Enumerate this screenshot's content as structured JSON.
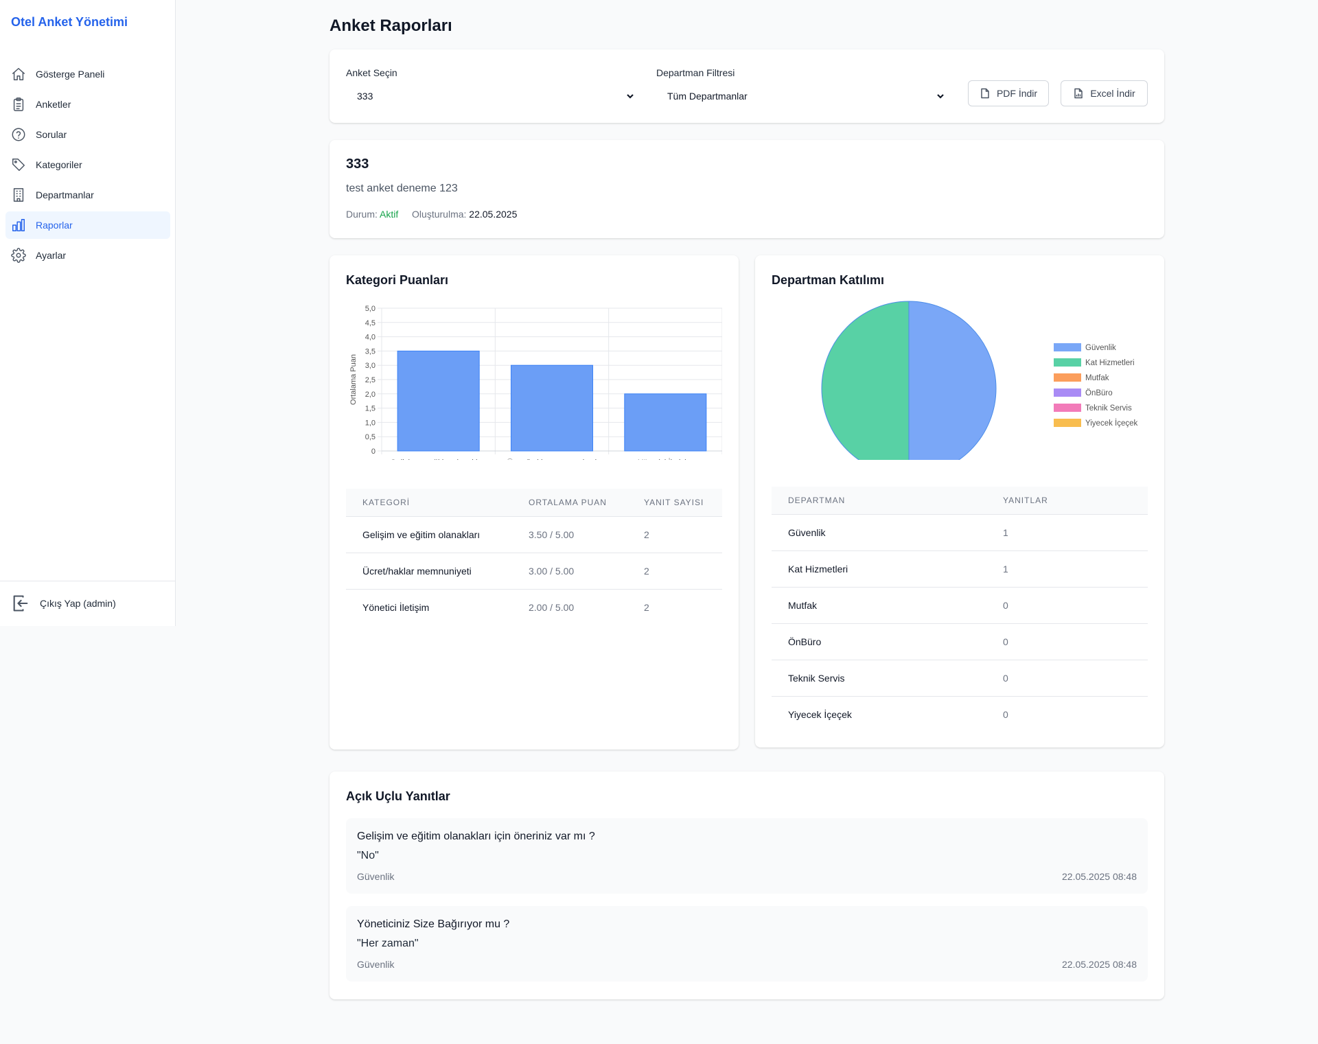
{
  "app_title": "Otel Anket Yönetimi",
  "sidebar": {
    "items": [
      {
        "label": "Gösterge Paneli",
        "icon": "home-icon"
      },
      {
        "label": "Anketler",
        "icon": "clipboard-icon"
      },
      {
        "label": "Sorular",
        "icon": "question-circle-icon"
      },
      {
        "label": "Kategoriler",
        "icon": "tag-icon"
      },
      {
        "label": "Departmanlar",
        "icon": "building-icon"
      },
      {
        "label": "Raporlar",
        "icon": "bar-chart-icon",
        "active": true
      },
      {
        "label": "Ayarlar",
        "icon": "gear-icon"
      }
    ],
    "logout_label": "Çıkış Yap (admin)"
  },
  "page_title": "Anket Raporları",
  "filters": {
    "survey_label": "Anket Seçin",
    "survey_value": "333",
    "department_label": "Departman Filtresi",
    "department_value": "Tüm Departmanlar",
    "pdf_label": "PDF İndir",
    "excel_label": "Excel İndir"
  },
  "survey": {
    "title": "333",
    "description": "test anket deneme 123",
    "status_label": "Durum:",
    "status_value": "Aktif",
    "created_label": "Oluşturulma:",
    "created_value": "22.05.2025"
  },
  "category_section": {
    "title": "Kategori Puanları",
    "table": {
      "headers": [
        "KATEGORİ",
        "ORTALAMA PUAN",
        "YANIT SAYISI"
      ],
      "rows": [
        [
          "Gelişim ve eğitim olanakları",
          "3.50 / 5.00",
          "2"
        ],
        [
          "Ücret/haklar memnuniyeti",
          "3.00 / 5.00",
          "2"
        ],
        [
          "Yönetici İletişim",
          "2.00 / 5.00",
          "2"
        ]
      ]
    }
  },
  "department_section": {
    "title": "Departman Katılımı",
    "table": {
      "headers": [
        "DEPARTMAN",
        "YANITLAR"
      ],
      "rows": [
        [
          "Güvenlik",
          "1"
        ],
        [
          "Kat Hizmetleri",
          "1"
        ],
        [
          "Mutfak",
          "0"
        ],
        [
          "ÖnBüro",
          "0"
        ],
        [
          "Teknik Servis",
          "0"
        ],
        [
          "Yiyecek İçeçek",
          "0"
        ]
      ]
    }
  },
  "open_responses": {
    "title": "Açık Uçlu Yanıtlar",
    "items": [
      {
        "question": "Gelişim ve eğitim olanakları için öneriniz var mı ?",
        "answer": "\"No\"",
        "department": "Güvenlik",
        "timestamp": "22.05.2025 08:48"
      },
      {
        "question": "Yöneticiniz Size Bağırıyor mu ?",
        "answer": "\"Her zaman\"",
        "department": "Güvenlik",
        "timestamp": "22.05.2025 08:48"
      }
    ]
  },
  "chart_data": [
    {
      "type": "bar",
      "title": "",
      "categories": [
        "Gelişim ve eğitim olanakları",
        "Ücret/haklar memnuniyeti",
        "Yönetici İletişim"
      ],
      "values": [
        3.5,
        3.0,
        2.0
      ],
      "ylabel": "Ortalama Puan",
      "xlabel": "",
      "ylim": [
        0,
        5
      ],
      "yticks": [
        "0",
        "0,5",
        "1,0",
        "1,5",
        "2,0",
        "2,5",
        "3,0",
        "3,5",
        "4,0",
        "4,5",
        "5,0"
      ],
      "grid": true,
      "color": "#6b9ef6",
      "border_color": "#3b82f6"
    },
    {
      "type": "pie",
      "labels": [
        "Güvenlik",
        "Kat Hizmetleri",
        "Mutfak",
        "ÖnBüro",
        "Teknik Servis",
        "Yiyecek İçeçek"
      ],
      "values": [
        1,
        1,
        0,
        0,
        0,
        0
      ],
      "colors": [
        "#7aa7f7",
        "#58d1a5",
        "#fb9e5c",
        "#a98bf5",
        "#f27bb9",
        "#f8bd4f"
      ],
      "legend": "right"
    }
  ]
}
